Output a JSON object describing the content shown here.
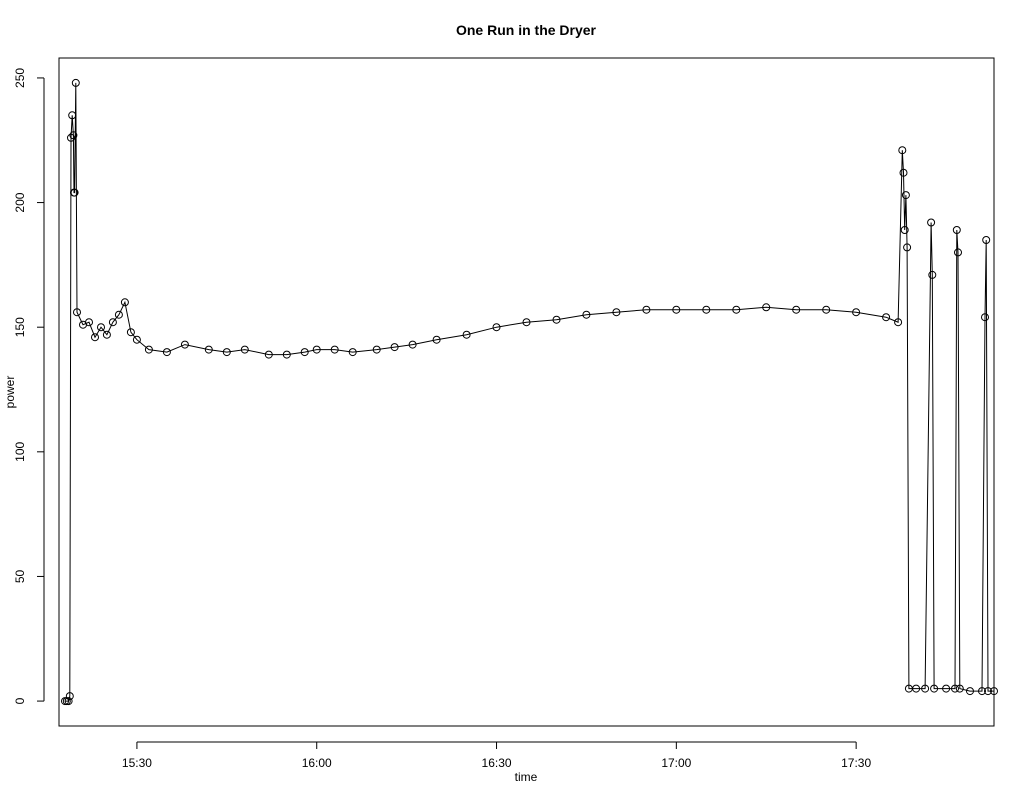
{
  "chart_data": {
    "type": "line",
    "title": "One Run in the Dryer",
    "xlabel": "time",
    "ylabel": "power",
    "xlim": [
      "15:17",
      "17:53"
    ],
    "ylim": [
      -10,
      258
    ],
    "x_ticks": [
      "15:30",
      "16:00",
      "16:30",
      "17:00",
      "17:30"
    ],
    "y_ticks": [
      0,
      50,
      100,
      150,
      200,
      250
    ],
    "grid": false,
    "legend": "none",
    "markers": "open-circle",
    "series": [
      {
        "points": [
          [
            "15:18",
            0
          ],
          [
            "15:18.3",
            0
          ],
          [
            "15:18.6",
            0
          ],
          [
            "15:18.8",
            2
          ],
          [
            "15:19",
            226
          ],
          [
            "15:19.2",
            235
          ],
          [
            "15:19.4",
            227
          ],
          [
            "15:19.5",
            204
          ],
          [
            "15:19.6",
            204
          ],
          [
            "15:19.8",
            248
          ],
          [
            "15:20",
            156
          ],
          [
            "15:21",
            151
          ],
          [
            "15:22",
            152
          ],
          [
            "15:23",
            146
          ],
          [
            "15:24",
            150
          ],
          [
            "15:25",
            147
          ],
          [
            "15:26",
            152
          ],
          [
            "15:27",
            155
          ],
          [
            "15:28",
            160
          ],
          [
            "15:29",
            148
          ],
          [
            "15:30",
            145
          ],
          [
            "15:32",
            141
          ],
          [
            "15:35",
            140
          ],
          [
            "15:38",
            143
          ],
          [
            "15:42",
            141
          ],
          [
            "15:45",
            140
          ],
          [
            "15:48",
            141
          ],
          [
            "15:52",
            139
          ],
          [
            "15:55",
            139
          ],
          [
            "15:58",
            140
          ],
          [
            "16:00",
            141
          ],
          [
            "16:03",
            141
          ],
          [
            "16:06",
            140
          ],
          [
            "16:10",
            141
          ],
          [
            "16:13",
            142
          ],
          [
            "16:16",
            143
          ],
          [
            "16:20",
            145
          ],
          [
            "16:25",
            147
          ],
          [
            "16:30",
            150
          ],
          [
            "16:35",
            152
          ],
          [
            "16:40",
            153
          ],
          [
            "16:45",
            155
          ],
          [
            "16:50",
            156
          ],
          [
            "16:55",
            157
          ],
          [
            "17:00",
            157
          ],
          [
            "17:05",
            157
          ],
          [
            "17:10",
            157
          ],
          [
            "17:15",
            158
          ],
          [
            "17:20",
            157
          ],
          [
            "17:25",
            157
          ],
          [
            "17:30",
            156
          ],
          [
            "17:35",
            154
          ],
          [
            "17:37",
            152
          ],
          [
            "17:37.7",
            221
          ],
          [
            "17:37.9",
            212
          ],
          [
            "17:38.1",
            189
          ],
          [
            "17:38.3",
            203
          ],
          [
            "17:38.5",
            182
          ],
          [
            "17:38.8",
            5
          ],
          [
            "17:40",
            5
          ],
          [
            "17:41.5",
            5
          ],
          [
            "17:42.5",
            192
          ],
          [
            "17:42.7",
            171
          ],
          [
            "17:43",
            5
          ],
          [
            "17:45",
            5
          ],
          [
            "17:46.5",
            5
          ],
          [
            "17:46.8",
            189
          ],
          [
            "17:47",
            180
          ],
          [
            "17:47.3",
            5
          ],
          [
            "17:49",
            4
          ],
          [
            "17:51",
            4
          ],
          [
            "17:51.5",
            154
          ],
          [
            "17:51.7",
            185
          ],
          [
            "17:52",
            4
          ],
          [
            "17:53",
            4
          ]
        ]
      }
    ]
  }
}
